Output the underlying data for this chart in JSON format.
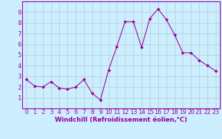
{
  "x": [
    0,
    1,
    2,
    3,
    4,
    5,
    6,
    7,
    8,
    9,
    10,
    11,
    12,
    13,
    14,
    15,
    16,
    17,
    18,
    19,
    20,
    21,
    22,
    23
  ],
  "y": [
    2.7,
    2.1,
    2.0,
    2.5,
    1.9,
    1.8,
    2.0,
    2.7,
    1.4,
    0.8,
    3.6,
    5.8,
    8.1,
    8.1,
    5.7,
    8.4,
    9.3,
    8.3,
    6.9,
    5.2,
    5.2,
    4.5,
    4.0,
    3.5
  ],
  "line_color": "#990099",
  "marker": "D",
  "marker_size": 2.0,
  "bg_color": "#cceeff",
  "grid_color": "#aacccc",
  "xlabel": "Windchill (Refroidissement éolien,°C)",
  "xlabel_fontsize": 6.5,
  "tick_fontsize": 6,
  "ylim": [
    0,
    10
  ],
  "xlim": [
    -0.5,
    23.5
  ],
  "yticks": [
    1,
    2,
    3,
    4,
    5,
    6,
    7,
    8,
    9
  ],
  "xticks": [
    0,
    1,
    2,
    3,
    4,
    5,
    6,
    7,
    8,
    9,
    10,
    11,
    12,
    13,
    14,
    15,
    16,
    17,
    18,
    19,
    20,
    21,
    22,
    23
  ]
}
